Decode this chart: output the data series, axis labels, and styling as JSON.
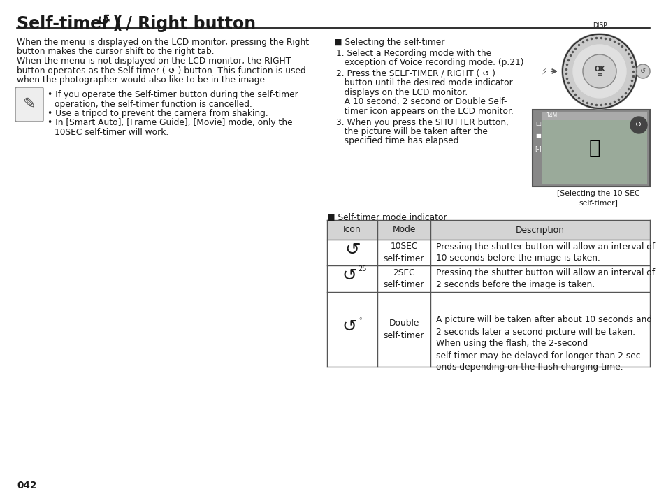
{
  "bg_color": "#ffffff",
  "text_color": "#1a1a1a",
  "page_number": "042",
  "title_text": "Self-timer (  ) / Right button",
  "left_body": "When the menu is displayed on the LCD monitor, pressing the Right\nbutton makes the cursor shift to the right tab.\nWhen the menu is not displayed on the LCD monitor, the RIGHT\nbutton operates as the Self-timer (  ) button. This function is used\nwhen the photographer would also like to be in the image.",
  "bullets": [
    "If you operate the Self-timer button during the self-timer\n  operation, the self-timer function is cancelled.",
    "Use a tripod to prevent the camera from shaking.",
    "In [Smart Auto], [Frame Guide], [Movie] mode, only the\n  10SEC self-timer will work."
  ],
  "right_header": "■ Selecting the self-timer",
  "steps": [
    "1. Select a Recording mode with the\n    exception of Voice recording mode. (p.21)",
    "2. Press the SELF-TIMER / RIGHT (  )\n    button until the desired mode indicator\n    displays on the LCD monitor.\n    A 10 second, 2 second or Double Self-\n    timer icon appears on the LCD monitor.",
    "3. When you press the SHUTTER button,\n    the picture will be taken after the\n    specified time has elapsed."
  ],
  "image_caption": "[Selecting the 10 SEC\nself-timer]",
  "table_title": "■ Self-timer mode indicator",
  "table_headers": [
    "Icon",
    "Mode",
    "Description"
  ],
  "table_header_bg": "#d4d4d4",
  "table_border": "#555555",
  "row1_mode": "10SEC\nself-timer",
  "row1_desc": "Pressing the shutter button will allow an interval of\n10 seconds before the image is taken.",
  "row2_mode": "2SEC\nself-timer",
  "row2_desc": "Pressing the shutter button will allow an interval of\n2 seconds before the image is taken.",
  "row3_mode": "Double\nself-timer",
  "row3_desc": "A picture will be taken after about 10 seconds and\n2 seconds later a second picture will be taken.\nWhen using the flash, the 2-second\nself-timer may be delayed for longer than 2 sec-\nonds depending on the flash charging time."
}
